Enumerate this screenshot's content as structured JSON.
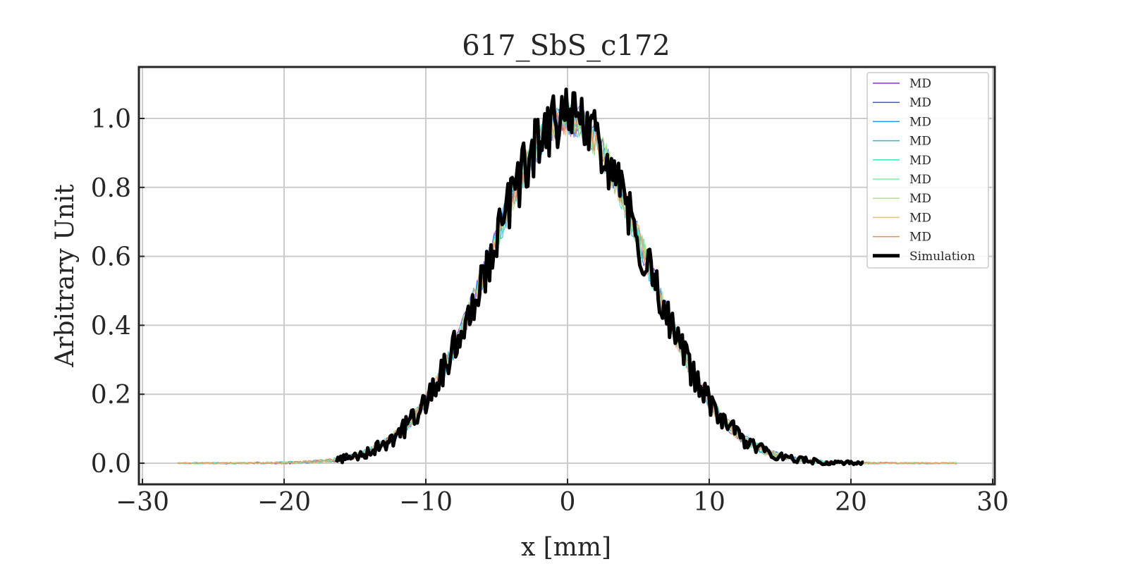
{
  "chart_data": {
    "type": "line",
    "title": "617_SbS_c172",
    "xlabel": "x [mm]",
    "ylabel": "Arbitrary Unit",
    "xlim": [
      -30,
      30
    ],
    "ylim": [
      -0.06,
      1.15
    ],
    "xticks": [
      -30,
      -20,
      -10,
      0,
      10,
      20,
      30
    ],
    "xtick_labels": [
      "−30",
      "−20",
      "−10",
      "0",
      "10",
      "20",
      "30"
    ],
    "yticks": [
      0.0,
      0.2,
      0.4,
      0.6,
      0.8,
      1.0
    ],
    "ytick_labels": [
      "0.0",
      "0.2",
      "0.4",
      "0.6",
      "0.8",
      "1.0"
    ],
    "grid": true,
    "legend_position": "top-right",
    "profile": {
      "shape": "gaussian",
      "center": 0.0,
      "sigma": 5.4,
      "peak": 1.0,
      "md_range": [
        -27.5,
        27.5
      ],
      "simulation_range": [
        -16.3,
        20.9
      ]
    },
    "series": [
      {
        "name": "MD",
        "color": "#8b2be2",
        "width": 1.2
      },
      {
        "name": "MD",
        "color": "#4b52e8",
        "width": 1.2
      },
      {
        "name": "MD",
        "color": "#1e96f0",
        "width": 1.2
      },
      {
        "name": "MD",
        "color": "#1fbfbf",
        "width": 1.2
      },
      {
        "name": "MD",
        "color": "#40e0c8",
        "width": 1.2
      },
      {
        "name": "MD",
        "color": "#80f0a0",
        "width": 1.2
      },
      {
        "name": "MD",
        "color": "#b8e080",
        "width": 1.2
      },
      {
        "name": "MD",
        "color": "#e8c080",
        "width": 1.2
      },
      {
        "name": "MD",
        "color": "#f08858",
        "width": 1.2
      },
      {
        "name": "Simulation",
        "color": "#000000",
        "width": 5
      }
    ]
  }
}
